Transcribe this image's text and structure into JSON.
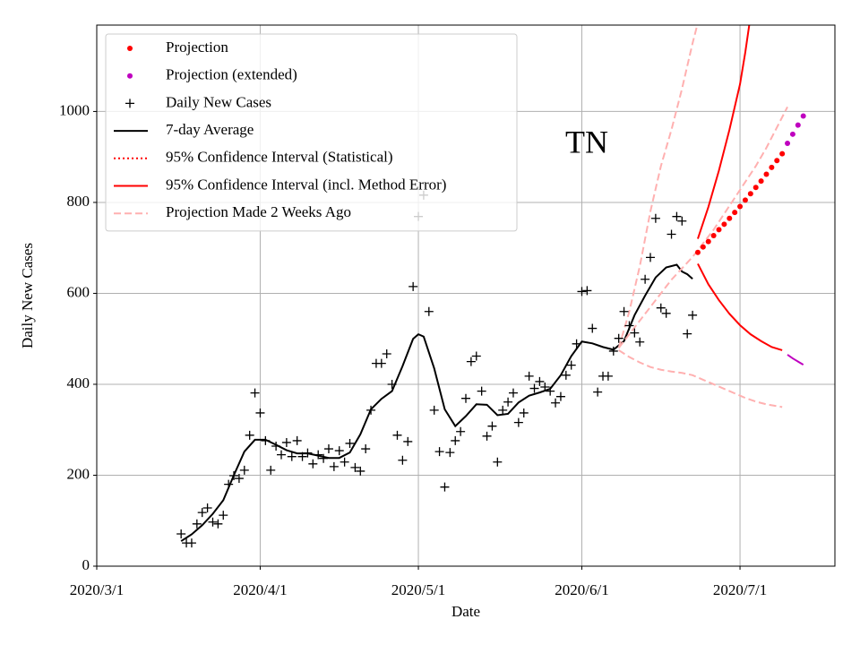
{
  "chart_data": {
    "type": "line",
    "title": "TN",
    "x_label": "Date",
    "y_label": "Daily New Cases",
    "xlim": [
      "2020-03-01",
      "2020-07-19"
    ],
    "xticks": [
      {
        "value": "2020-03-01",
        "label": "2020/3/1"
      },
      {
        "value": "2020-04-01",
        "label": "2020/4/1"
      },
      {
        "value": "2020-05-01",
        "label": "2020/5/1"
      },
      {
        "value": "2020-06-01",
        "label": "2020/6/1"
      },
      {
        "value": "2020-07-01",
        "label": "2020/7/1"
      }
    ],
    "ylim": [
      0,
      1190
    ],
    "yticks": [
      0,
      200,
      400,
      600,
      800,
      1000
    ],
    "grid": true,
    "legend": "upper left",
    "series": [
      {
        "name": "Projection",
        "kind": "scatter",
        "marker": "dot",
        "color": "#ff0000",
        "x": [
          "2020-06-23",
          "2020-06-24",
          "2020-06-25",
          "2020-06-26",
          "2020-06-27",
          "2020-06-28",
          "2020-06-29",
          "2020-06-30",
          "2020-07-01",
          "2020-07-02",
          "2020-07-03",
          "2020-07-04",
          "2020-07-05",
          "2020-07-06",
          "2020-07-07",
          "2020-07-08",
          "2020-07-09"
        ],
        "values": [
          690,
          702,
          714,
          727,
          740,
          752,
          765,
          778,
          791,
          805,
          819,
          833,
          847,
          862,
          877,
          892,
          907
        ]
      },
      {
        "name": "Projection (extended)",
        "kind": "scatter",
        "marker": "dot",
        "color": "#bf00bf",
        "x": [
          "2020-07-10",
          "2020-07-11",
          "2020-07-12",
          "2020-07-13"
        ],
        "values": [
          930,
          950,
          970,
          990
        ]
      },
      {
        "name": "Daily New Cases",
        "kind": "scatter",
        "marker": "plus",
        "color": "#000000",
        "x": [
          "2020-03-17",
          "2020-03-18",
          "2020-03-19",
          "2020-03-20",
          "2020-03-21",
          "2020-03-22",
          "2020-03-23",
          "2020-03-24",
          "2020-03-25",
          "2020-03-26",
          "2020-03-27",
          "2020-03-28",
          "2020-03-29",
          "2020-03-30",
          "2020-03-31",
          "2020-04-01",
          "2020-04-02",
          "2020-04-03",
          "2020-04-04",
          "2020-04-05",
          "2020-04-06",
          "2020-04-07",
          "2020-04-08",
          "2020-04-09",
          "2020-04-10",
          "2020-04-11",
          "2020-04-12",
          "2020-04-13",
          "2020-04-14",
          "2020-04-15",
          "2020-04-16",
          "2020-04-17",
          "2020-04-18",
          "2020-04-19",
          "2020-04-20",
          "2020-04-21",
          "2020-04-22",
          "2020-04-23",
          "2020-04-24",
          "2020-04-25",
          "2020-04-26",
          "2020-04-27",
          "2020-04-28",
          "2020-04-29",
          "2020-04-30",
          "2020-05-01",
          "2020-05-02",
          "2020-05-03",
          "2020-05-04",
          "2020-05-05",
          "2020-05-06",
          "2020-05-07",
          "2020-05-08",
          "2020-05-09",
          "2020-05-10",
          "2020-05-11",
          "2020-05-12",
          "2020-05-13",
          "2020-05-14",
          "2020-05-15",
          "2020-05-16",
          "2020-05-17",
          "2020-05-18",
          "2020-05-19",
          "2020-05-20",
          "2020-05-21",
          "2020-05-22",
          "2020-05-23",
          "2020-05-24",
          "2020-05-25",
          "2020-05-26",
          "2020-05-27",
          "2020-05-28",
          "2020-05-29",
          "2020-05-30",
          "2020-05-31",
          "2020-06-01",
          "2020-06-02",
          "2020-06-03",
          "2020-06-04",
          "2020-06-05",
          "2020-06-06",
          "2020-06-07",
          "2020-06-08",
          "2020-06-09",
          "2020-06-10",
          "2020-06-11",
          "2020-06-12",
          "2020-06-13",
          "2020-06-14",
          "2020-06-15",
          "2020-06-16",
          "2020-06-17",
          "2020-06-18",
          "2020-06-19",
          "2020-06-20",
          "2020-06-21",
          "2020-06-22"
        ],
        "values": [
          71,
          51,
          51,
          93,
          118,
          128,
          97,
          93,
          112,
          180,
          199,
          193,
          211,
          288,
          381,
          337,
          276,
          211,
          264,
          245,
          272,
          241,
          276,
          241,
          249,
          225,
          245,
          237,
          258,
          219,
          254,
          229,
          270,
          217,
          209,
          258,
          343,
          446,
          446,
          467,
          400,
          288,
          233,
          274,
          615,
          769,
          816,
          560,
          343,
          252,
          174,
          250,
          276,
          296,
          369,
          450,
          462,
          385,
          286,
          308,
          229,
          343,
          361,
          381,
          316,
          337,
          418,
          391,
          406,
          394,
          385,
          359,
          373,
          420,
          442,
          489,
          604,
          606,
          523,
          383,
          418,
          418,
          473,
          501,
          560,
          529,
          513,
          493,
          631,
          679,
          765,
          568,
          556,
          730,
          769,
          759,
          511,
          552
        ]
      },
      {
        "name": "7-day Average",
        "kind": "line",
        "style": "solid",
        "color": "#000000",
        "x": [
          "2020-03-17",
          "2020-03-19",
          "2020-03-21",
          "2020-03-23",
          "2020-03-25",
          "2020-03-27",
          "2020-03-29",
          "2020-03-31",
          "2020-04-02",
          "2020-04-04",
          "2020-04-06",
          "2020-04-08",
          "2020-04-10",
          "2020-04-12",
          "2020-04-14",
          "2020-04-16",
          "2020-04-18",
          "2020-04-20",
          "2020-04-22",
          "2020-04-24",
          "2020-04-26",
          "2020-04-28",
          "2020-04-30",
          "2020-05-01",
          "2020-05-02",
          "2020-05-04",
          "2020-05-06",
          "2020-05-08",
          "2020-05-10",
          "2020-05-12",
          "2020-05-14",
          "2020-05-16",
          "2020-05-18",
          "2020-05-20",
          "2020-05-22",
          "2020-05-24",
          "2020-05-26",
          "2020-05-28",
          "2020-05-30",
          "2020-06-01",
          "2020-06-03",
          "2020-06-05",
          "2020-06-07",
          "2020-06-09",
          "2020-06-11",
          "2020-06-13",
          "2020-06-15",
          "2020-06-17",
          "2020-06-19",
          "2020-06-20",
          "2020-06-21",
          "2020-06-22"
        ],
        "values": [
          55,
          70,
          90,
          115,
          145,
          200,
          252,
          278,
          278,
          267,
          255,
          248,
          248,
          243,
          238,
          238,
          250,
          290,
          345,
          368,
          385,
          440,
          500,
          510,
          505,
          435,
          345,
          308,
          330,
          356,
          355,
          332,
          335,
          360,
          375,
          382,
          390,
          420,
          462,
          494,
          490,
          482,
          476,
          495,
          552,
          595,
          635,
          657,
          663,
          648,
          642,
          632
        ]
      },
      {
        "name": "95% Confidence Interval (Statistical)",
        "kind": "band",
        "style": "dotted",
        "color": "#ff0000"
      },
      {
        "name": "95% Confidence Interval (incl. Method Error)",
        "kind": "band",
        "style": "solid",
        "color": "#ff0000",
        "upper": {
          "x": [
            "2020-06-23",
            "2020-06-25",
            "2020-06-27",
            "2020-06-29",
            "2020-07-01",
            "2020-07-02",
            "2020-07-03"
          ],
          "values": [
            720,
            790,
            870,
            960,
            1060,
            1130,
            1210
          ]
        },
        "lower": {
          "x": [
            "2020-06-23",
            "2020-06-25",
            "2020-06-27",
            "2020-06-29",
            "2020-07-01",
            "2020-07-03",
            "2020-07-05",
            "2020-07-07",
            "2020-07-09"
          ],
          "values": [
            665,
            620,
            585,
            555,
            530,
            510,
            495,
            482,
            475
          ]
        }
      },
      {
        "kind": "band",
        "style": "solid",
        "color": "#bf00bf",
        "lower": {
          "x": [
            "2020-07-10",
            "2020-07-11",
            "2020-07-12",
            "2020-07-13"
          ],
          "values": [
            465,
            457,
            450,
            443
          ]
        }
      },
      {
        "name": "Projection Made 2 Weeks Ago",
        "kind": "band",
        "style": "dashed",
        "color": "#ffb0b0",
        "upper": {
          "x": [
            "2020-06-08",
            "2020-06-10",
            "2020-06-12",
            "2020-06-14",
            "2020-06-16",
            "2020-06-18",
            "2020-06-20",
            "2020-06-22",
            "2020-06-23"
          ],
          "values": [
            480,
            560,
            660,
            780,
            880,
            960,
            1050,
            1150,
            1195
          ]
        },
        "middle": {
          "x": [
            "2020-06-08",
            "2020-06-10",
            "2020-06-12",
            "2020-06-14",
            "2020-06-16",
            "2020-06-18",
            "2020-06-20",
            "2020-06-22",
            "2020-06-24",
            "2020-06-26",
            "2020-06-28",
            "2020-06-30",
            "2020-07-02",
            "2020-07-04",
            "2020-07-06",
            "2020-07-08",
            "2020-07-10"
          ],
          "values": [
            480,
            510,
            540,
            570,
            600,
            630,
            655,
            680,
            710,
            740,
            775,
            810,
            845,
            880,
            920,
            965,
            1010
          ]
        },
        "lower": {
          "x": [
            "2020-06-08",
            "2020-06-10",
            "2020-06-12",
            "2020-06-14",
            "2020-06-16",
            "2020-06-18",
            "2020-06-20",
            "2020-06-22",
            "2020-06-24",
            "2020-06-26",
            "2020-06-28",
            "2020-06-30",
            "2020-07-02",
            "2020-07-04",
            "2020-07-06",
            "2020-07-08",
            "2020-07-09"
          ],
          "values": [
            475,
            460,
            448,
            438,
            432,
            428,
            425,
            420,
            410,
            400,
            390,
            380,
            370,
            362,
            356,
            352,
            350
          ]
        }
      }
    ]
  }
}
